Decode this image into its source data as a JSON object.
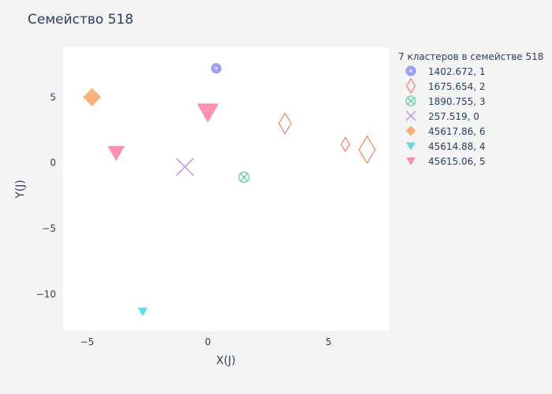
{
  "chart_data": {
    "type": "scatter",
    "title": "Семейство 518",
    "xlabel": "X(J)",
    "ylabel": "Y(J)",
    "xlim": [
      -6.0,
      7.5
    ],
    "ylim": [
      -12.8,
      8.8
    ],
    "xticks": [
      -5,
      0,
      5
    ],
    "xtick_labels": [
      "−5",
      "0",
      "5"
    ],
    "yticks": [
      5,
      0,
      -5,
      -10
    ],
    "ytick_labels": [
      "5",
      "0",
      "−5",
      "−10"
    ],
    "grid": false,
    "legend_position": "right",
    "legend_title": "7 кластеров в семействе 518",
    "series": [
      {
        "name": "1402.672, 1",
        "symbol": "circle-dot",
        "color": "#8e94f2",
        "fill": true,
        "points": [
          {
            "x": 0.35,
            "y": 7.2,
            "size": 12
          }
        ]
      },
      {
        "name": "1675.654, 2",
        "symbol": "diamond-tall",
        "color": "#ef6a4f",
        "fill": false,
        "points": [
          {
            "x": 3.2,
            "y": 3.0,
            "size": 26
          },
          {
            "x": 5.7,
            "y": 1.4,
            "size": 18
          },
          {
            "x": 6.6,
            "y": 1.0,
            "size": 34
          }
        ]
      },
      {
        "name": "1890.755, 3",
        "symbol": "circle-x",
        "color": "#3cc48a",
        "fill": false,
        "points": [
          {
            "x": 1.5,
            "y": -1.1,
            "size": 13
          }
        ]
      },
      {
        "name": "257.519, 0",
        "symbol": "x-thin",
        "color": "#b57bf7",
        "fill": false,
        "points": [
          {
            "x": -0.95,
            "y": -0.3,
            "size": 22
          }
        ]
      },
      {
        "name": "45617.86, 6",
        "symbol": "diamond-cross",
        "color": "#f7a66b",
        "fill": true,
        "points": [
          {
            "x": -4.8,
            "y": 5.0,
            "size": 22
          }
        ]
      },
      {
        "name": "45614.88, 4",
        "symbol": "triangle-down",
        "color": "#46d8e8",
        "fill": true,
        "points": [
          {
            "x": -2.7,
            "y": -11.3,
            "size": 11
          }
        ]
      },
      {
        "name": "45615.06, 5",
        "symbol": "triangle-down",
        "color": "#fb7fa3",
        "fill": true,
        "points": [
          {
            "x": -3.8,
            "y": 0.8,
            "size": 20
          },
          {
            "x": 0.0,
            "y": 3.9,
            "size": 26
          }
        ]
      }
    ]
  }
}
